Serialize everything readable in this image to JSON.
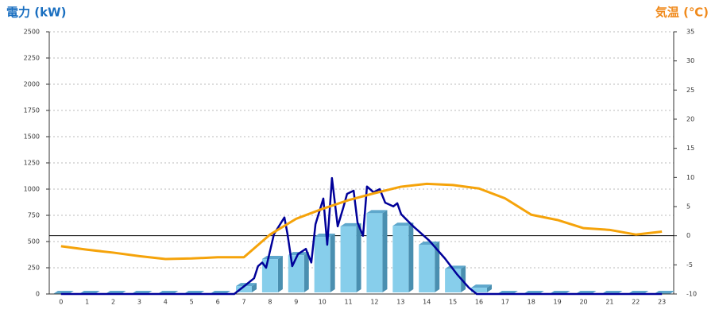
{
  "chart_data": {
    "type": "bar-line",
    "title_left": "電力 (kW)",
    "title_right": "気温 (℃)",
    "categories": [
      "0",
      "1",
      "2",
      "3",
      "4",
      "5",
      "6",
      "7",
      "8",
      "9",
      "10",
      "11",
      "12",
      "13",
      "14",
      "15",
      "16",
      "17",
      "18",
      "19",
      "20",
      "21",
      "22",
      "23"
    ],
    "bar_series": {
      "name": "電力",
      "color": "#87ceeb",
      "values": [
        0,
        0,
        0,
        0,
        0,
        0,
        0,
        75,
        333,
        370,
        545,
        645,
        770,
        650,
        470,
        240,
        60,
        0,
        0,
        0,
        0,
        0,
        0,
        0
      ]
    },
    "power_line": {
      "name": "電力",
      "color": "#000099",
      "x": [
        0,
        6.63,
        7.09,
        7.39,
        7.54,
        7.7,
        7.85,
        8.15,
        8.55,
        8.67,
        8.85,
        9.07,
        9.37,
        9.58,
        9.74,
        10.04,
        10.19,
        10.37,
        10.59,
        10.8,
        10.95,
        11.2,
        11.35,
        11.56,
        11.71,
        11.96,
        12.2,
        12.41,
        12.72,
        12.87,
        13.02,
        13.48,
        14.09,
        14.69,
        15.15,
        15.61,
        15.91,
        23
      ],
      "values": [
        0,
        0,
        90,
        150,
        265,
        300,
        250,
        570,
        730,
        570,
        265,
        380,
        430,
        300,
        665,
        910,
        470,
        1105,
        645,
        820,
        955,
        985,
        680,
        555,
        1025,
        970,
        1000,
        870,
        835,
        865,
        760,
        645,
        510,
        340,
        190,
        60,
        0,
        0
      ]
    },
    "temp_line": {
      "name": "気温",
      "color": "#f5a30a",
      "axis": "y2",
      "values": [
        -1.8,
        -2.4,
        -2.9,
        -3.5,
        -4.0,
        -3.9,
        -3.7,
        -3.7,
        0.2,
        2.9,
        4.6,
        6.1,
        7.3,
        8.4,
        8.9,
        8.7,
        8.1,
        6.4,
        3.6,
        2.7,
        1.3,
        1.0,
        0.2,
        0.7
      ]
    },
    "xlim": [
      -0.45,
      23.45
    ],
    "ylim": [
      0,
      2500
    ],
    "yticks": [
      0,
      250,
      500,
      750,
      1000,
      1250,
      1500,
      1750,
      2000,
      2250,
      2500
    ],
    "y2lim": [
      -10,
      35
    ],
    "y2ticks": [
      -10,
      -5,
      0,
      5,
      10,
      15,
      20,
      25,
      30,
      35
    ],
    "y2_reference_line": 0,
    "grid": true
  }
}
